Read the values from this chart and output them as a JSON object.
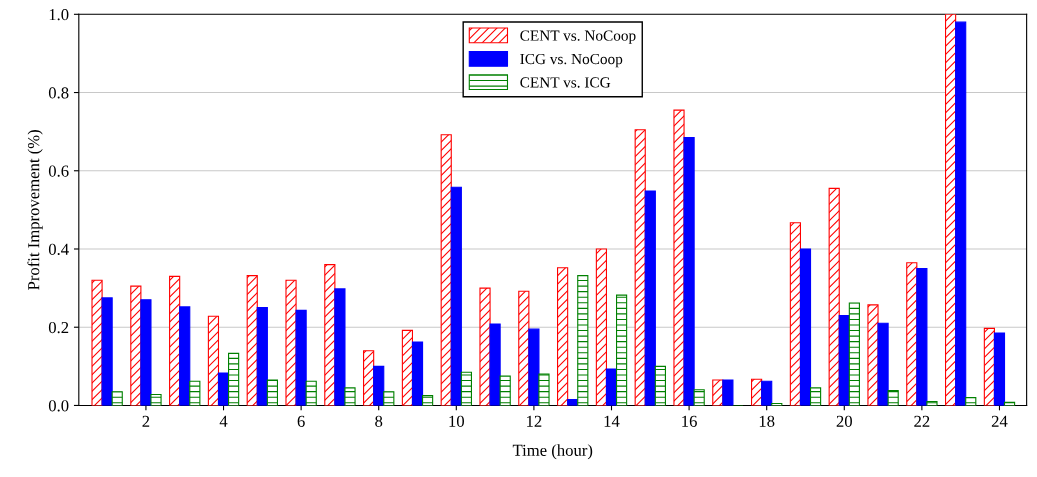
{
  "chart_data": {
    "type": "bar",
    "xlabel": "Time (hour)",
    "ylabel": "Profit Improvement (%)",
    "x": [
      1,
      2,
      3,
      4,
      5,
      6,
      7,
      8,
      9,
      10,
      11,
      12,
      13,
      14,
      15,
      16,
      17,
      18,
      19,
      20,
      21,
      22,
      23,
      24
    ],
    "series": [
      {
        "name": "CENT vs. NoCoop",
        "color": "#ff0000",
        "values": [
          0.32,
          0.305,
          0.33,
          0.228,
          0.332,
          0.32,
          0.36,
          0.14,
          0.192,
          0.692,
          0.3,
          0.292,
          0.352,
          0.4,
          0.705,
          0.755,
          0.065,
          0.067,
          0.467,
          0.555,
          0.257,
          0.365,
          1.0,
          0.197
        ]
      },
      {
        "name": "ICG vs. NoCoop",
        "color": "#0000ff",
        "values": [
          0.275,
          0.27,
          0.252,
          0.083,
          0.25,
          0.243,
          0.298,
          0.1,
          0.162,
          0.558,
          0.208,
          0.195,
          0.015,
          0.093,
          0.548,
          0.685,
          0.065,
          0.062,
          0.4,
          0.23,
          0.21,
          0.35,
          0.98,
          0.185
        ]
      },
      {
        "name": "CENT vs. ICG",
        "color": "#008000",
        "values": [
          0.035,
          0.028,
          0.062,
          0.133,
          0.065,
          0.062,
          0.045,
          0.035,
          0.025,
          0.085,
          0.075,
          0.08,
          0.332,
          0.282,
          0.1,
          0.04,
          0.0,
          0.005,
          0.045,
          0.262,
          0.038,
          0.01,
          0.02,
          0.008
        ]
      }
    ],
    "xlim": [
      0.27,
      24.7
    ],
    "xticks": [
      2,
      4,
      6,
      8,
      10,
      12,
      14,
      16,
      18,
      20,
      22,
      24
    ],
    "ylim": [
      0,
      1.0
    ],
    "yticks": [
      {
        "value": 0,
        "label": "0.0"
      },
      {
        "value": 0.2,
        "label": "0.2"
      },
      {
        "value": 0.4,
        "label": "0.4"
      },
      {
        "value": 0.6,
        "label": "0.6"
      },
      {
        "value": 0.8,
        "label": "0.8"
      },
      {
        "value": 1.0,
        "label": "1.0"
      }
    ],
    "grid": "y",
    "legend": "top"
  }
}
